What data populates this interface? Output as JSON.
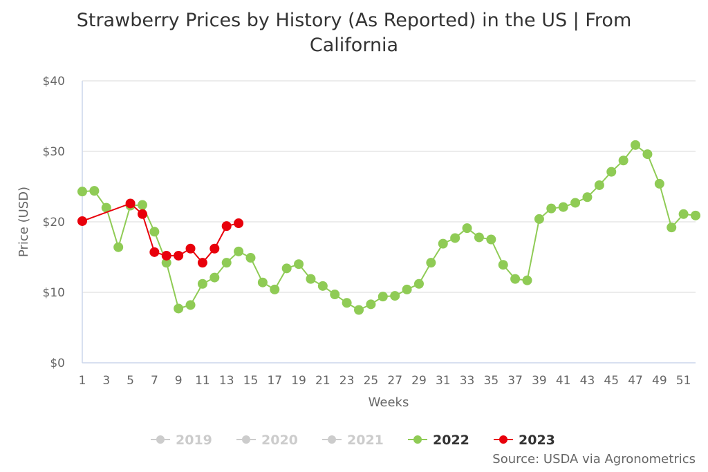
{
  "chart_data": {
    "type": "line",
    "title": [
      "Strawberry Prices by History (As Reported) in the US | From",
      "California"
    ],
    "xlabel": "Weeks",
    "ylabel": "Price (USD)",
    "ylim": [
      0,
      40
    ],
    "yticks": [
      "$0",
      "$10",
      "$20",
      "$30",
      "$40"
    ],
    "xticks": [
      1,
      3,
      5,
      7,
      9,
      11,
      13,
      15,
      17,
      19,
      21,
      23,
      25,
      27,
      29,
      31,
      33,
      35,
      37,
      39,
      41,
      43,
      45,
      47,
      49,
      51
    ],
    "xlim": [
      1,
      52
    ],
    "grid": "horizontal",
    "legend_position": "bottom",
    "series": [
      {
        "name": "2019",
        "color": "#cccccc",
        "hidden": true,
        "x": [],
        "values": []
      },
      {
        "name": "2020",
        "color": "#cccccc",
        "hidden": true,
        "x": [],
        "values": []
      },
      {
        "name": "2021",
        "color": "#cccccc",
        "hidden": true,
        "x": [],
        "values": []
      },
      {
        "name": "2022",
        "color": "#8fcb55",
        "hidden": false,
        "x": [
          1,
          2,
          3,
          4,
          5,
          6,
          7,
          8,
          9,
          10,
          11,
          12,
          13,
          14,
          15,
          16,
          17,
          18,
          19,
          20,
          21,
          22,
          23,
          24,
          25,
          26,
          27,
          28,
          29,
          30,
          31,
          32,
          33,
          34,
          35,
          36,
          37,
          38,
          39,
          40,
          41,
          42,
          43,
          44,
          45,
          46,
          47,
          48,
          49,
          50,
          51,
          52
        ],
        "values": [
          24.3,
          24.4,
          22.0,
          16.4,
          22.3,
          22.4,
          18.6,
          14.2,
          7.7,
          8.2,
          11.2,
          12.1,
          14.2,
          15.8,
          14.9,
          11.4,
          10.4,
          13.4,
          14.0,
          11.9,
          10.9,
          9.7,
          8.5,
          7.5,
          8.3,
          9.4,
          9.5,
          10.4,
          11.2,
          14.2,
          16.9,
          17.7,
          19.1,
          17.8,
          17.5,
          13.9,
          11.9,
          11.7,
          20.4,
          21.9,
          22.1,
          22.7,
          23.5,
          25.2,
          27.1,
          28.7,
          30.9,
          29.6,
          25.4,
          19.2,
          21.1,
          20.9
        ]
      },
      {
        "name": "2023",
        "color": "#e8000b",
        "hidden": false,
        "x": [
          1,
          5,
          6,
          7,
          8,
          9,
          10,
          11,
          12,
          13,
          14
        ],
        "values": [
          20.1,
          22.6,
          21.1,
          15.7,
          15.2,
          15.2,
          16.2,
          14.2,
          16.2,
          19.4,
          19.8
        ]
      }
    ]
  },
  "source": "Source: USDA via Agronometrics"
}
